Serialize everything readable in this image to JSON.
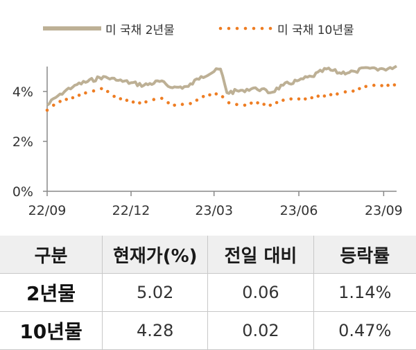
{
  "chart_data": {
    "type": "line",
    "title": "",
    "xlabel": "",
    "ylabel": "",
    "x_ticks": [
      "22/09",
      "22/12",
      "23/03",
      "23/06",
      "23/09"
    ],
    "y_ticks": [
      "0%",
      "2%",
      "4%"
    ],
    "ylim": [
      0,
      5.0
    ],
    "grid": false,
    "legend_position": "top",
    "series": [
      {
        "name": "미 국채 2년물",
        "color": "#bdb095",
        "style": "solid",
        "x": [
          "2022-09-01",
          "2022-09-15",
          "2022-10-01",
          "2022-10-15",
          "2022-11-01",
          "2022-11-15",
          "2022-12-01",
          "2022-12-15",
          "2023-01-01",
          "2023-01-15",
          "2023-02-01",
          "2023-02-15",
          "2023-03-01",
          "2023-03-08",
          "2023-03-15",
          "2023-04-01",
          "2023-04-15",
          "2023-05-01",
          "2023-05-15",
          "2023-06-01",
          "2023-06-15",
          "2023-07-01",
          "2023-07-15",
          "2023-08-01",
          "2023-08-15",
          "2023-09-01",
          "2023-09-15"
        ],
        "values": [
          3.45,
          3.9,
          4.25,
          4.4,
          4.6,
          4.45,
          4.35,
          4.25,
          4.4,
          4.15,
          4.2,
          4.6,
          4.8,
          4.9,
          3.95,
          4.05,
          4.15,
          3.95,
          4.25,
          4.45,
          4.6,
          4.9,
          4.75,
          4.8,
          4.95,
          4.9,
          5.02
        ]
      },
      {
        "name": "미 국채 10년물",
        "color": "#ee7d23",
        "style": "dotted",
        "x": [
          "2022-09-01",
          "2022-09-15",
          "2022-10-01",
          "2022-10-15",
          "2022-11-01",
          "2022-11-15",
          "2022-12-01",
          "2022-12-15",
          "2023-01-01",
          "2023-01-15",
          "2023-02-01",
          "2023-02-15",
          "2023-03-01",
          "2023-03-08",
          "2023-03-15",
          "2023-04-01",
          "2023-04-15",
          "2023-05-01",
          "2023-05-15",
          "2023-06-01",
          "2023-06-15",
          "2023-07-01",
          "2023-07-15",
          "2023-08-01",
          "2023-08-15",
          "2023-09-01",
          "2023-09-15"
        ],
        "values": [
          3.25,
          3.6,
          3.75,
          4.0,
          4.1,
          3.75,
          3.6,
          3.55,
          3.75,
          3.45,
          3.5,
          3.75,
          3.9,
          3.95,
          3.55,
          3.45,
          3.55,
          3.45,
          3.65,
          3.7,
          3.75,
          3.85,
          3.9,
          4.05,
          4.2,
          4.25,
          4.28
        ]
      }
    ]
  },
  "table": {
    "headers": [
      "구분",
      "현재가(%)",
      "전일 대비",
      "등락률"
    ],
    "rows": [
      [
        "2년물",
        "5.02",
        "0.06",
        "1.14%"
      ],
      [
        "10년물",
        "4.28",
        "0.02",
        "0.47%"
      ]
    ]
  }
}
